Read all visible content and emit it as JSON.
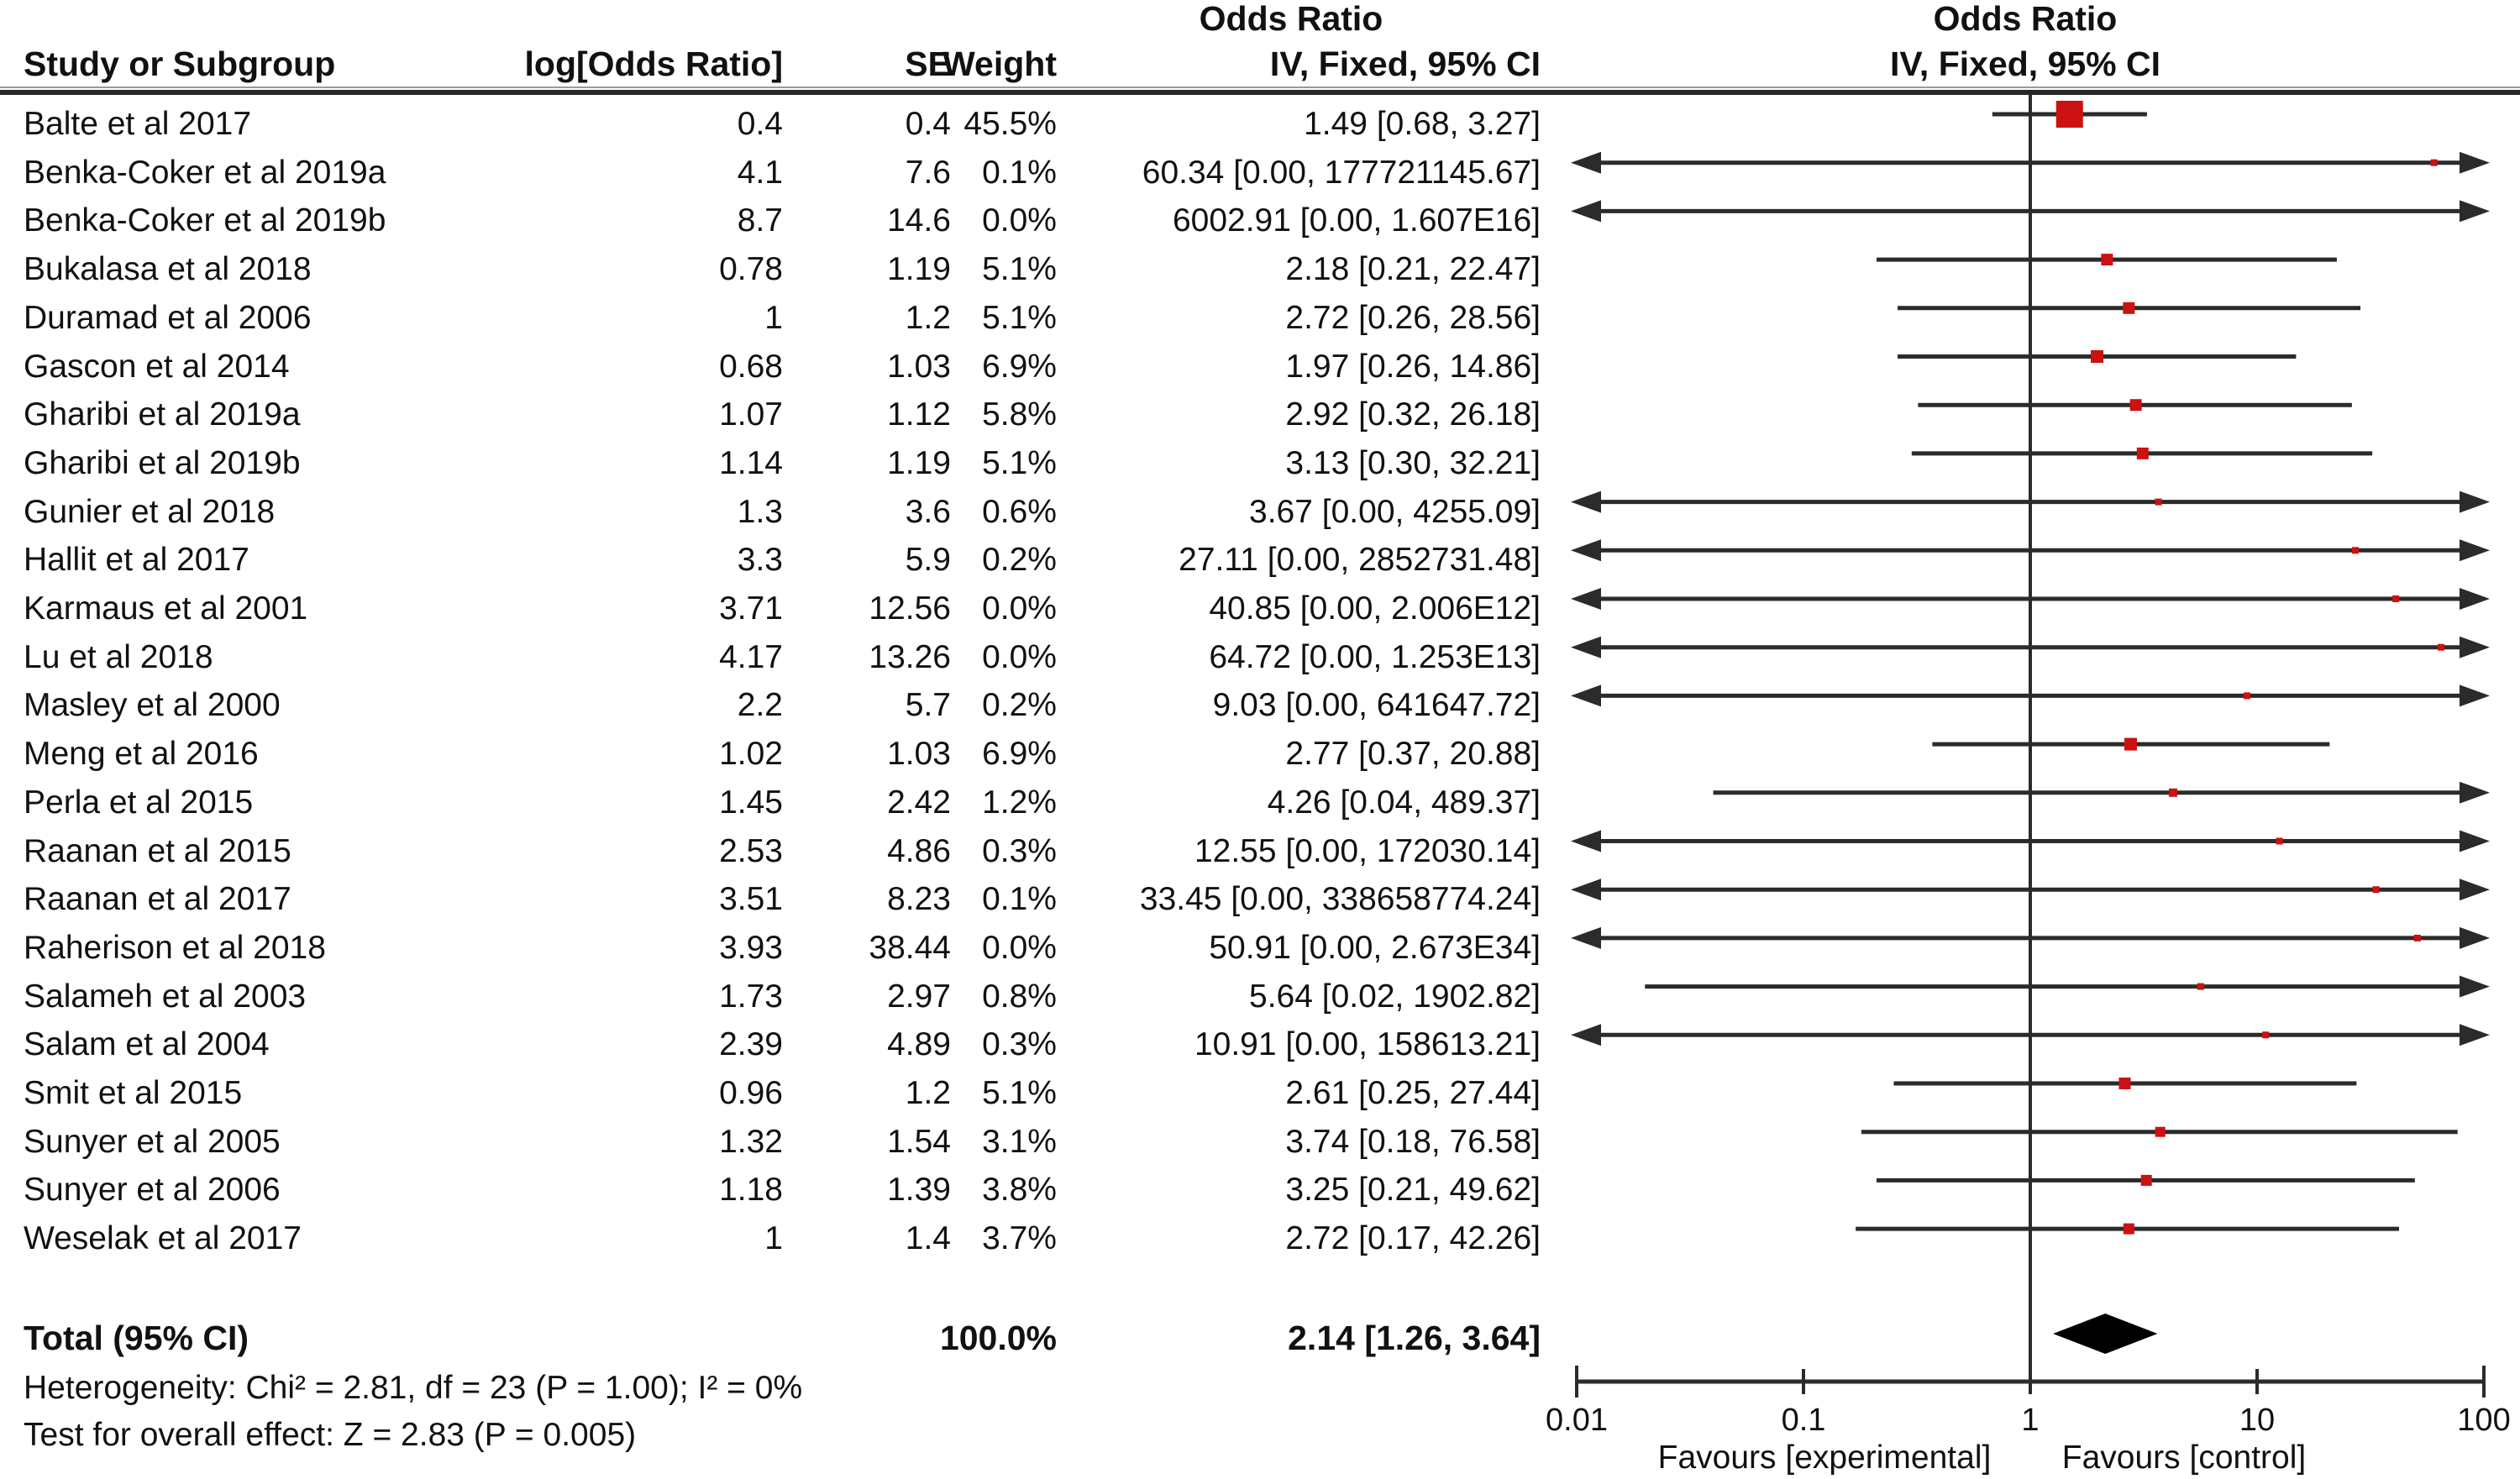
{
  "header": {
    "study": "Study or Subgroup",
    "log_or": "log[Odds Ratio]",
    "se": "SE",
    "weight": "Weight",
    "or_text_title": "Odds Ratio",
    "or_text_sub": "IV, Fixed, 95% CI",
    "or_plot_title": "Odds Ratio",
    "or_plot_sub": "IV, Fixed, 95% CI"
  },
  "footer": {
    "total_label": "Total (95% CI)",
    "total_weight": "100.0%",
    "total_ci": "2.14 [1.26, 3.64]",
    "heterogeneity": "Heterogeneity: Chi² = 2.81, df = 23 (P = 1.00); I² = 0%",
    "overall": "Test for overall effect: Z = 2.83 (P = 0.005)"
  },
  "axis": {
    "ticks": [
      "0.01",
      "0.1",
      "1",
      "10",
      "100"
    ],
    "favours_left": "Favours [experimental]",
    "favours_right": "Favours [control]"
  },
  "colors": {
    "marker_red": "#cc1111",
    "line": "#2b2b2b",
    "diamond": "#000000"
  },
  "chart_data": {
    "type": "scatter",
    "subtype": "forest-plot",
    "effect_measure": "Odds Ratio",
    "model": "IV, Fixed, 95% CI",
    "x_scale": "log10",
    "x_range": [
      0.01,
      100
    ],
    "x_ticks": [
      0.01,
      0.1,
      1,
      10,
      100
    ],
    "studies": [
      {
        "name": "Balte et al 2017",
        "log_or": "0.4",
        "se": "0.4",
        "weight": "45.5%",
        "weight_pct": 45.5,
        "ci_text": "1.49 [0.68, 3.27]",
        "or": 1.49,
        "lo": 0.68,
        "hi": 3.27
      },
      {
        "name": "Benka-Coker et al 2019a",
        "log_or": "4.1",
        "se": "7.6",
        "weight": "0.1%",
        "weight_pct": 0.1,
        "ci_text": "60.34 [0.00, 177721145.67]",
        "or": 60.34,
        "lo": 0,
        "hi": 177721145.67
      },
      {
        "name": "Benka-Coker et al 2019b",
        "log_or": "8.7",
        "se": "14.6",
        "weight": "0.0%",
        "weight_pct": 0.0,
        "ci_text": "6002.91 [0.00, 1.607E16]",
        "or": 6002.91,
        "lo": 0,
        "hi": 1.607e+16
      },
      {
        "name": "Bukalasa et al 2018",
        "log_or": "0.78",
        "se": "1.19",
        "weight": "5.1%",
        "weight_pct": 5.1,
        "ci_text": "2.18 [0.21, 22.47]",
        "or": 2.18,
        "lo": 0.21,
        "hi": 22.47
      },
      {
        "name": "Duramad et al 2006",
        "log_or": "1",
        "se": "1.2",
        "weight": "5.1%",
        "weight_pct": 5.1,
        "ci_text": "2.72 [0.26, 28.56]",
        "or": 2.72,
        "lo": 0.26,
        "hi": 28.56
      },
      {
        "name": "Gascon et al 2014",
        "log_or": "0.68",
        "se": "1.03",
        "weight": "6.9%",
        "weight_pct": 6.9,
        "ci_text": "1.97 [0.26, 14.86]",
        "or": 1.97,
        "lo": 0.26,
        "hi": 14.86
      },
      {
        "name": "Gharibi et al 2019a",
        "log_or": "1.07",
        "se": "1.12",
        "weight": "5.8%",
        "weight_pct": 5.8,
        "ci_text": "2.92 [0.32, 26.18]",
        "or": 2.92,
        "lo": 0.32,
        "hi": 26.18
      },
      {
        "name": "Gharibi et al 2019b",
        "log_or": "1.14",
        "se": "1.19",
        "weight": "5.1%",
        "weight_pct": 5.1,
        "ci_text": "3.13 [0.30, 32.21]",
        "or": 3.13,
        "lo": 0.3,
        "hi": 32.21
      },
      {
        "name": "Gunier et al 2018",
        "log_or": "1.3",
        "se": "3.6",
        "weight": "0.6%",
        "weight_pct": 0.6,
        "ci_text": "3.67 [0.00, 4255.09]",
        "or": 3.67,
        "lo": 0,
        "hi": 4255.09
      },
      {
        "name": "Hallit et al 2017",
        "log_or": "3.3",
        "se": "5.9",
        "weight": "0.2%",
        "weight_pct": 0.2,
        "ci_text": "27.11 [0.00, 2852731.48]",
        "or": 27.11,
        "lo": 0,
        "hi": 2852731.48
      },
      {
        "name": "Karmaus et al 2001",
        "log_or": "3.71",
        "se": "12.56",
        "weight": "0.0%",
        "weight_pct": 0.0,
        "ci_text": "40.85 [0.00, 2.006E12]",
        "or": 40.85,
        "lo": 0,
        "hi": 2006000000000.0
      },
      {
        "name": "Lu et al 2018",
        "log_or": "4.17",
        "se": "13.26",
        "weight": "0.0%",
        "weight_pct": 0.0,
        "ci_text": "64.72 [0.00, 1.253E13]",
        "or": 64.72,
        "lo": 0,
        "hi": 12530000000000.0
      },
      {
        "name": "Masley et al 2000",
        "log_or": "2.2",
        "se": "5.7",
        "weight": "0.2%",
        "weight_pct": 0.2,
        "ci_text": "9.03 [0.00, 641647.72]",
        "or": 9.03,
        "lo": 0,
        "hi": 641647.72
      },
      {
        "name": "Meng et al 2016",
        "log_or": "1.02",
        "se": "1.03",
        "weight": "6.9%",
        "weight_pct": 6.9,
        "ci_text": "2.77 [0.37, 20.88]",
        "or": 2.77,
        "lo": 0.37,
        "hi": 20.88
      },
      {
        "name": "Perla et al 2015",
        "log_or": "1.45",
        "se": "2.42",
        "weight": "1.2%",
        "weight_pct": 1.2,
        "ci_text": "4.26 [0.04, 489.37]",
        "or": 4.26,
        "lo": 0.04,
        "hi": 489.37
      },
      {
        "name": "Raanan et al 2015",
        "log_or": "2.53",
        "se": "4.86",
        "weight": "0.3%",
        "weight_pct": 0.3,
        "ci_text": "12.55 [0.00, 172030.14]",
        "or": 12.55,
        "lo": 0,
        "hi": 172030.14
      },
      {
        "name": "Raanan et al 2017",
        "log_or": "3.51",
        "se": "8.23",
        "weight": "0.1%",
        "weight_pct": 0.1,
        "ci_text": "33.45 [0.00, 338658774.24]",
        "or": 33.45,
        "lo": 0,
        "hi": 338658774.24
      },
      {
        "name": "Raherison et al 2018",
        "log_or": "3.93",
        "se": "38.44",
        "weight": "0.0%",
        "weight_pct": 0.0,
        "ci_text": "50.91 [0.00, 2.673E34]",
        "or": 50.91,
        "lo": 0,
        "hi": 2.673e+34
      },
      {
        "name": "Salameh et al 2003",
        "log_or": "1.73",
        "se": "2.97",
        "weight": "0.8%",
        "weight_pct": 0.8,
        "ci_text": "5.64 [0.02, 1902.82]",
        "or": 5.64,
        "lo": 0.02,
        "hi": 1902.82
      },
      {
        "name": "Salam et al 2004",
        "log_or": "2.39",
        "se": "4.89",
        "weight": "0.3%",
        "weight_pct": 0.3,
        "ci_text": "10.91 [0.00, 158613.21]",
        "or": 10.91,
        "lo": 0,
        "hi": 158613.21
      },
      {
        "name": "Smit et al 2015",
        "log_or": "0.96",
        "se": "1.2",
        "weight": "5.1%",
        "weight_pct": 5.1,
        "ci_text": "2.61 [0.25, 27.44]",
        "or": 2.61,
        "lo": 0.25,
        "hi": 27.44
      },
      {
        "name": "Sunyer et al 2005",
        "log_or": "1.32",
        "se": "1.54",
        "weight": "3.1%",
        "weight_pct": 3.1,
        "ci_text": "3.74 [0.18, 76.58]",
        "or": 3.74,
        "lo": 0.18,
        "hi": 76.58
      },
      {
        "name": "Sunyer et al 2006",
        "log_or": "1.18",
        "se": "1.39",
        "weight": "3.8%",
        "weight_pct": 3.8,
        "ci_text": "3.25 [0.21, 49.62]",
        "or": 3.25,
        "lo": 0.21,
        "hi": 49.62
      },
      {
        "name": "Weselak et al 2017",
        "log_or": "1",
        "se": "1.4",
        "weight": "3.7%",
        "weight_pct": 3.7,
        "ci_text": "2.72 [0.17, 42.26]",
        "or": 2.72,
        "lo": 0.17,
        "hi": 42.26
      }
    ],
    "total": {
      "or": 2.14,
      "lo": 1.26,
      "hi": 3.64,
      "weight_pct": 100.0
    },
    "heterogeneity": {
      "chi2": 2.81,
      "df": 23,
      "p": 1.0,
      "i2_pct": 0
    },
    "overall_effect": {
      "z": 2.83,
      "p": 0.005
    }
  }
}
